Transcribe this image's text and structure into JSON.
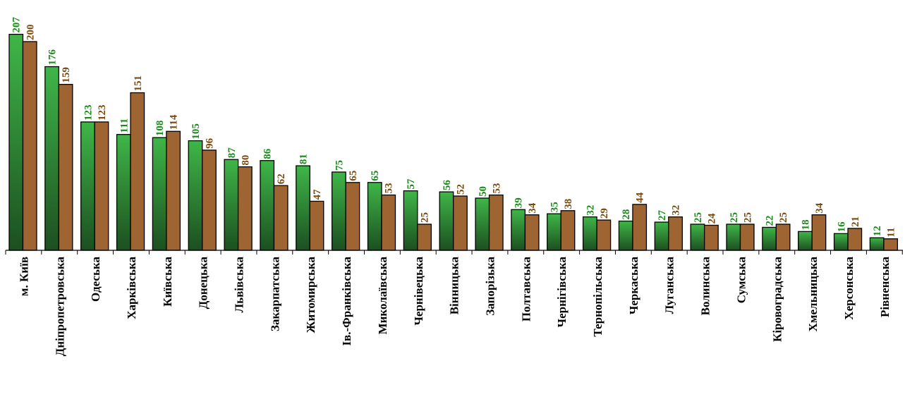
{
  "chart_data": {
    "type": "bar",
    "categories": [
      "м. Київ",
      "Дніпропетровська",
      "Одеська",
      "Харківська",
      "Київська",
      "Донецька",
      "Львівська",
      "Закарпатська",
      "Житомирська",
      "Ів.-Франківська",
      "Миколаївська",
      "Чернівецька",
      "Вінницька",
      "Запорізька",
      "Полтавська",
      "Чернігівська",
      "Тернопільська",
      "Черкаська",
      "Луганська",
      "Волинська",
      "Сумська",
      "Кіровоградська",
      "Хмельницька",
      "Херсонська",
      "Рівненська"
    ],
    "series": [
      {
        "values": [
          207,
          176,
          123,
          111,
          108,
          105,
          87,
          86,
          81,
          75,
          65,
          57,
          56,
          50,
          39,
          35,
          32,
          28,
          27,
          25,
          25,
          22,
          18,
          16,
          12
        ],
        "color": "#2e9a3a",
        "label_color": "#1a8a1a"
      },
      {
        "values": [
          200,
          159,
          123,
          151,
          114,
          96,
          80,
          62,
          47,
          65,
          53,
          25,
          52,
          53,
          34,
          38,
          29,
          44,
          32,
          24,
          25,
          25,
          34,
          21,
          11
        ],
        "color": "#9a6030",
        "label_color": "#7a4a10"
      }
    ],
    "title": "",
    "xlabel": "",
    "ylabel": "",
    "ylim": [
      0,
      210
    ],
    "grid": false,
    "legend": "none"
  }
}
